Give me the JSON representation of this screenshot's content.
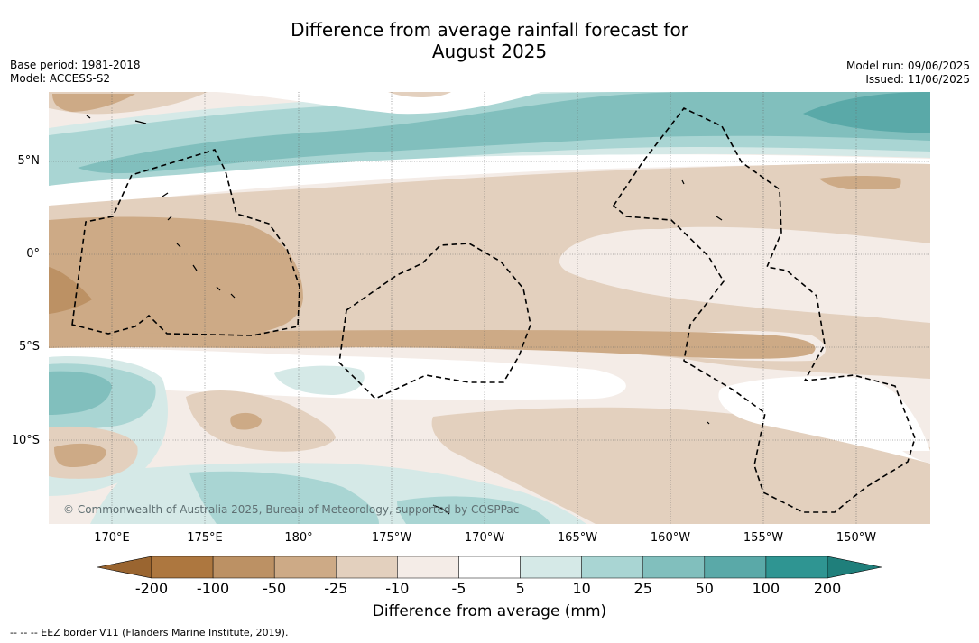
{
  "title_line1": "Difference from average rainfall forecast for",
  "title_line2": "August 2025",
  "base_period": "Base period: 1981-2018",
  "model": "Model: ACCESS-S2",
  "model_run": "Model run: 09/06/2025",
  "issued": "Issued: 11/06/2025",
  "longitude_labels": [
    "170°E",
    "175°E",
    "180°",
    "175°W",
    "170°W",
    "165°W",
    "160°W",
    "155°W",
    "150°W"
  ],
  "latitude_labels": [
    "5°N",
    "0°",
    "5°S",
    "10°S"
  ],
  "copyright": "© Commonwealth of Australia 2025, Bureau of Meteorology, supported by COSPPac",
  "colorbar": {
    "title": "Difference from average (mm)",
    "ticks": [
      "-200",
      "-100",
      "-50",
      "-25",
      "-10",
      "-5",
      "5",
      "10",
      "25",
      "50",
      "100",
      "200"
    ],
    "colors": [
      "#ad773f",
      "#bc9164",
      "#cdaa86",
      "#e3d0be",
      "#f4ece7",
      "#ffffff",
      "#d5e9e7",
      "#a9d5d3",
      "#81bfbd",
      "#5aa9a8",
      "#2f9592"
    ],
    "under_color": "#9a6530",
    "over_color": "#1f7f7b"
  },
  "legend_eez": "-- -- -- EEZ border V11 (Flanders Marine Institute, 2019)."
}
